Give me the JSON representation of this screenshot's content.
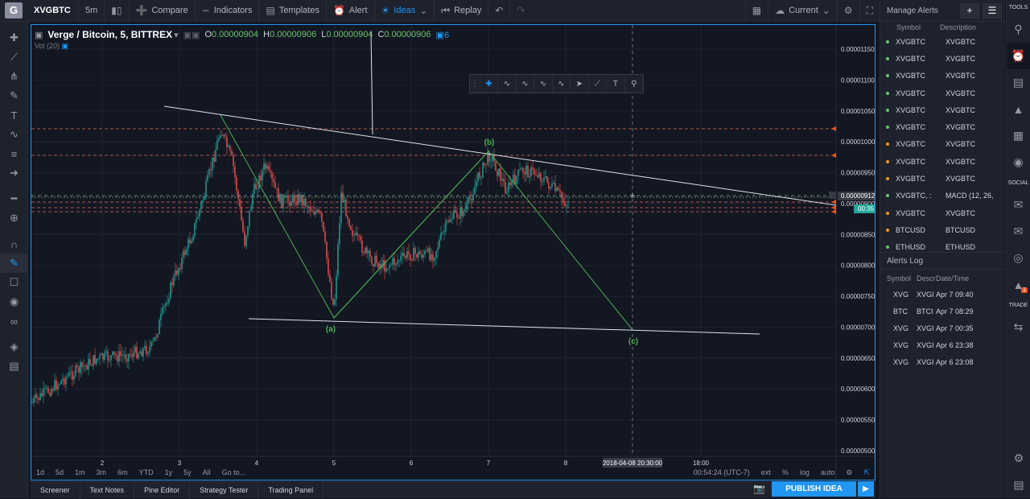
{
  "header": {
    "logo": "G",
    "symbol": "XVGBTC",
    "interval": "5m",
    "compare": "Compare",
    "indicators": "Indicators",
    "templates": "Templates",
    "alert": "Alert",
    "ideas": "Ideas",
    "replay": "Replay",
    "layout": "Current"
  },
  "legend": {
    "name": "Verge / Bitcoin, 5, BITTREX",
    "o_label": "O",
    "o": "0.00000904",
    "h_label": "H",
    "h": "0.00000906",
    "l_label": "L",
    "l": "0.00000904",
    "c_label": "C",
    "c": "0.00000906",
    "count": "6",
    "vol": "Vol (20)"
  },
  "price_axis": [
    "0.00001150",
    "0.00001100",
    "0.00001050",
    "0.00001000",
    "0.00000950",
    "0.00000900",
    "0.00000850",
    "0.00000800",
    "0.00000750",
    "0.00000700",
    "0.00000650",
    "0.00000600",
    "0.00000550",
    "0.00000500"
  ],
  "price_labels": {
    "current": "0.00000912",
    "countdown": "00:35"
  },
  "time_axis": [
    "2",
    "3",
    "4",
    "5",
    "6",
    "7",
    "8",
    "18:00"
  ],
  "crosshair_time": "2018-04-08 20:30:00",
  "wave_labels": {
    "a": "(a)",
    "b": "(b)",
    "c": "(c)"
  },
  "bottom": {
    "ranges": [
      "1d",
      "5d",
      "1m",
      "3m",
      "6m",
      "YTD",
      "1y",
      "5y",
      "All"
    ],
    "goto": "Go to...",
    "clock": "00:54:24 (UTC-7)",
    "ext": "ext",
    "pct": "%",
    "log": "log",
    "auto": "auto"
  },
  "tabs": [
    "Screener",
    "Text Notes",
    "Pine Editor",
    "Strategy Tester",
    "Trading Panel"
  ],
  "publish": "PUBLISH IDEA",
  "alerts": {
    "title": "Manage Alerts",
    "col_symbol": "Symbol",
    "col_desc": "Description",
    "rows": [
      {
        "symbol": "XVGBTC",
        "desc": "XVGBTC",
        "color": "#6fc16f"
      },
      {
        "symbol": "XVGBTC",
        "desc": "XVGBTC",
        "color": "#6fc16f"
      },
      {
        "symbol": "XVGBTC",
        "desc": "XVGBTC",
        "color": "#6fc16f"
      },
      {
        "symbol": "XVGBTC",
        "desc": "XVGBTC",
        "color": "#6fc16f"
      },
      {
        "symbol": "XVGBTC",
        "desc": "XVGBTC",
        "color": "#6fc16f"
      },
      {
        "symbol": "XVGBTC",
        "desc": "XVGBTC",
        "color": "#6fc16f"
      },
      {
        "symbol": "XVGBTC",
        "desc": "XVGBTC",
        "color": "#f7931a"
      },
      {
        "symbol": "XVGBTC",
        "desc": "XVGBTC",
        "color": "#f7931a"
      },
      {
        "symbol": "XVGBTC",
        "desc": "XVGBTC",
        "color": "#f7931a"
      },
      {
        "symbol": "XVGBTC, :",
        "desc": "MACD (12, 26,",
        "color": "#6fc16f"
      },
      {
        "symbol": "XVGBTC",
        "desc": "XVGBTC",
        "color": "#f7931a"
      },
      {
        "symbol": "BTCUSD",
        "desc": "BTCUSD",
        "color": "#f7931a"
      },
      {
        "symbol": "ETHUSD",
        "desc": "ETHUSD",
        "color": "#6fc16f"
      }
    ]
  },
  "log": {
    "title": "Alerts Log",
    "col_symbol": "Symbol",
    "col_desc": "Description",
    "col_time": "Date/Time",
    "rows": [
      {
        "symbol": "XVG",
        "desc": "XVGI",
        "time": "Apr 7 09:40"
      },
      {
        "symbol": "BTC",
        "desc": "BTCI",
        "time": "Apr 7 08:29"
      },
      {
        "symbol": "XVG",
        "desc": "XVGI",
        "time": "Apr 7 00:35"
      },
      {
        "symbol": "XVG",
        "desc": "XVGI",
        "time": "Apr 6 23:38"
      },
      {
        "symbol": "XVG",
        "desc": "XVGI",
        "time": "Apr 6 23:08"
      }
    ]
  },
  "rightbar": {
    "tools": "TOOLS",
    "social": "SOCIAL",
    "trade": "TRADE",
    "badge": "1"
  }
}
